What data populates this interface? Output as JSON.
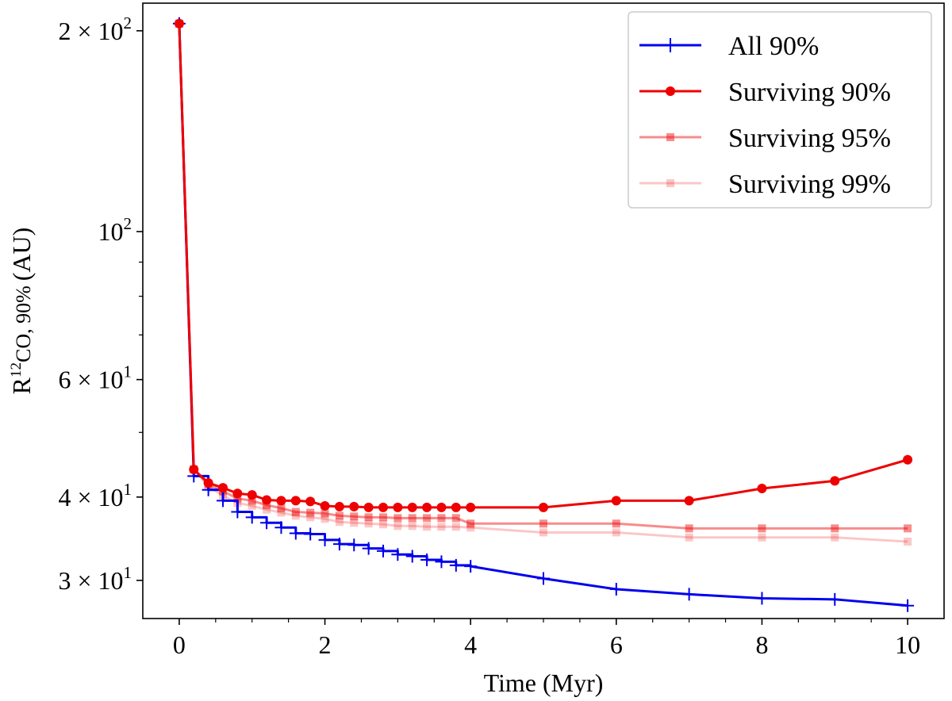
{
  "chart_data": {
    "type": "line",
    "xlabel": "Time (Myr)",
    "ylabel": {
      "main": "R",
      "sup": "12",
      "sub": "CO, 90%",
      "unit": "(AU)"
    },
    "yscale": "log",
    "xlim": [
      -0.5,
      10.5
    ],
    "ylim": [
      26.3,
      220
    ],
    "x_ticks": [
      0,
      2,
      4,
      6,
      8,
      10
    ],
    "x_tick_labels": [
      "0",
      "2",
      "4",
      "6",
      "8",
      "10"
    ],
    "y_ticks": [
      30,
      40,
      60,
      100,
      200
    ],
    "y_tick_labels": [
      {
        "mant": "3 × 10",
        "exp": "1"
      },
      {
        "mant": "4 × 10",
        "exp": "1"
      },
      {
        "mant": "6 × 10",
        "exp": "1"
      },
      {
        "mant": "10",
        "exp": "2"
      },
      {
        "mant": "2 × 10",
        "exp": "2"
      }
    ],
    "legend_position": "top-right",
    "grid": false,
    "series": [
      {
        "name": "All 90%",
        "color": "#0000ee",
        "opacity": 1,
        "marker": "plus",
        "x": [
          0,
          0.2,
          0.4,
          0.6,
          0.8,
          1.0,
          1.2,
          1.4,
          1.6,
          1.8,
          2.0,
          2.2,
          2.4,
          2.6,
          2.8,
          3.0,
          3.2,
          3.4,
          3.6,
          3.8,
          4,
          5,
          6,
          7,
          8,
          9,
          10
        ],
        "y": [
          205,
          43,
          41,
          39.5,
          38,
          37.3,
          36.6,
          36,
          35.3,
          35.2,
          34.5,
          34,
          33.9,
          33.5,
          33.2,
          32.8,
          32.6,
          32.2,
          32,
          31.6,
          31.5,
          30.2,
          29.1,
          28.6,
          28.2,
          28.1,
          27.5
        ]
      },
      {
        "name": "Surviving 90%",
        "color": "#ee0000",
        "opacity": 1,
        "marker": "circle",
        "x": [
          0,
          0.2,
          0.4,
          0.6,
          0.8,
          1.0,
          1.2,
          1.4,
          1.6,
          1.8,
          2.0,
          2.2,
          2.4,
          2.6,
          2.8,
          3.0,
          3.2,
          3.4,
          3.6,
          3.8,
          4,
          5,
          6,
          7,
          8,
          9,
          10
        ],
        "y": [
          205,
          44,
          42,
          41.3,
          40.5,
          40.3,
          39.6,
          39.5,
          39.5,
          39.4,
          38.8,
          38.7,
          38.7,
          38.6,
          38.6,
          38.6,
          38.6,
          38.6,
          38.6,
          38.6,
          38.6,
          38.6,
          39.5,
          39.5,
          41.2,
          42.3,
          45.5
        ]
      },
      {
        "name": "Surviving 95%",
        "color": "#ee0000",
        "opacity": 0.45,
        "marker": "square",
        "x": [
          0,
          0.2,
          0.4,
          0.6,
          0.8,
          1.0,
          1.2,
          1.4,
          1.6,
          1.8,
          2.0,
          2.2,
          2.4,
          2.6,
          2.8,
          3.0,
          3.2,
          3.4,
          3.6,
          3.8,
          4,
          5,
          6,
          7,
          8,
          9,
          10
        ],
        "y": [
          205,
          44,
          41.8,
          40.8,
          39.8,
          39.5,
          38.9,
          38.5,
          38,
          37.9,
          37.8,
          37.5,
          37.4,
          37.3,
          37.3,
          37.2,
          37.2,
          37.2,
          37.2,
          37.2,
          36.5,
          36.5,
          36.5,
          35.9,
          35.9,
          35.9,
          35.9
        ]
      },
      {
        "name": "Surviving 99%",
        "color": "#ee0000",
        "opacity": 0.22,
        "marker": "square",
        "x": [
          0,
          0.2,
          0.4,
          0.6,
          0.8,
          1.0,
          1.2,
          1.4,
          1.6,
          1.8,
          2.0,
          2.2,
          2.4,
          2.6,
          2.8,
          3.0,
          3.2,
          3.4,
          3.6,
          3.8,
          4,
          5,
          6,
          7,
          8,
          9,
          10
        ],
        "y": [
          205,
          44,
          41.5,
          40.2,
          39.2,
          38.8,
          38.3,
          37.9,
          37.5,
          37.3,
          37.1,
          36.7,
          36.6,
          36.5,
          36.4,
          36.2,
          36.2,
          36.1,
          36.1,
          36.1,
          36,
          35.4,
          35.4,
          34.8,
          34.8,
          34.8,
          34.3
        ]
      }
    ]
  }
}
